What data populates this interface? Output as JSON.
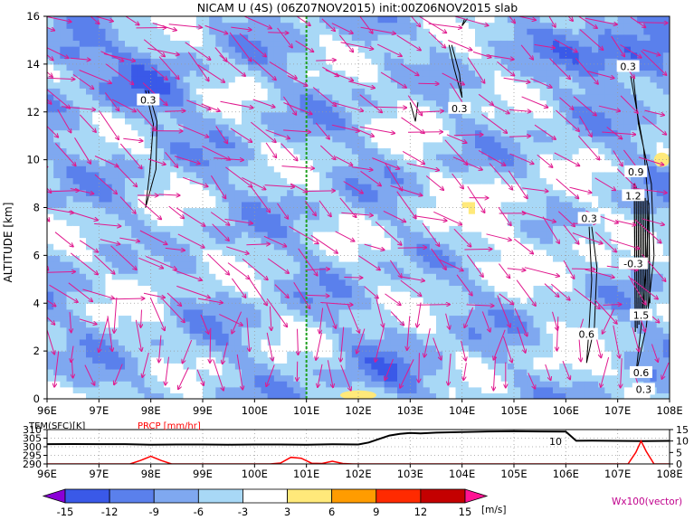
{
  "chart_data": [
    {
      "type": "heatmap",
      "title": "NICAM U (4S) (06Z07NOV2015) init:00Z06NOV2015 slab",
      "ylabel": "ALTITUDE [km]",
      "xlim": [
        96,
        108
      ],
      "ylim": [
        0,
        16
      ],
      "x_ticks": [
        "96E",
        "97E",
        "98E",
        "99E",
        "100E",
        "101E",
        "102E",
        "103E",
        "104E",
        "105E",
        "106E",
        "107E",
        "108E"
      ],
      "y_ticks": [
        "0",
        "2",
        "4",
        "6",
        "8",
        "10",
        "12",
        "14",
        "16"
      ],
      "grid": true,
      "marker_line_lon": 101.0,
      "contour_labels": [
        {
          "text": "0.3",
          "lon": 97.95,
          "alt": 12.5
        },
        {
          "text": "0.3",
          "lon": 103.95,
          "alt": 12.15
        },
        {
          "text": "0.3",
          "lon": 107.2,
          "alt": 13.9
        },
        {
          "text": "0.9",
          "lon": 107.35,
          "alt": 9.5
        },
        {
          "text": "1.2",
          "lon": 107.3,
          "alt": 8.5
        },
        {
          "text": "0.3",
          "lon": 106.45,
          "alt": 7.55
        },
        {
          "text": "-0.3",
          "lon": 107.3,
          "alt": 5.65
        },
        {
          "text": "1.5",
          "lon": 107.45,
          "alt": 3.5
        },
        {
          "text": "0.6",
          "lon": 106.4,
          "alt": 2.7
        },
        {
          "text": "0.6",
          "lon": 107.45,
          "alt": 1.1
        },
        {
          "text": "0.3",
          "lon": 107.5,
          "alt": 0.4
        }
      ],
      "vector_legend": "Wx100(vector)"
    },
    {
      "type": "line",
      "legend_left": "TEM(SFC)[K]",
      "legend_right": "PRCP [mm/hr]",
      "xlim": [
        96,
        108
      ],
      "y_left_ticks": [
        "310",
        "305",
        "300",
        "295",
        "290"
      ],
      "y_right_ticks": [
        "15",
        "10",
        "5",
        "0"
      ],
      "series": [
        {
          "name": "TEM(SFC)[K]",
          "color": "#000000",
          "x": [
            96,
            96.5,
            97,
            97.5,
            98,
            98.5,
            99,
            99.5,
            100,
            100.5,
            101,
            101.5,
            102,
            102.2,
            102.4,
            102.6,
            102.8,
            103,
            103.2,
            103.5,
            104,
            104.5,
            105,
            105.5,
            106,
            106.2,
            106.5,
            107,
            107.5,
            108
          ],
          "values": [
            301.5,
            301.6,
            301.5,
            301.5,
            301.2,
            301.3,
            301.3,
            301.2,
            301.3,
            301.3,
            301.2,
            301.4,
            301.3,
            302.5,
            304.5,
            306.5,
            307.5,
            308.0,
            307.8,
            308.2,
            308.6,
            308.9,
            309.0,
            308.9,
            308.8,
            303.5,
            303.6,
            303.4,
            303.3,
            303.4
          ]
        },
        {
          "name": "PRCP [mm/hr]",
          "color": "#ff0000",
          "x": [
            96,
            97.6,
            97.8,
            98.0,
            98.2,
            98.4,
            100.3,
            100.5,
            100.7,
            100.9,
            101.1,
            101.3,
            101.5,
            101.7,
            101.9,
            102.5,
            105.8,
            106.2,
            107.2,
            107.35,
            107.45,
            107.55,
            107.7,
            108
          ],
          "values": [
            0,
            0,
            1.5,
            3.3,
            1.5,
            0,
            0,
            0.4,
            2.9,
            2.5,
            0.3,
            0.2,
            1.2,
            0.2,
            0,
            0,
            0,
            0,
            0,
            5,
            10,
            5.5,
            0,
            0
          ]
        }
      ],
      "annotation": "10"
    }
  ],
  "colorbar": {
    "ticks": [
      "-15",
      "-12",
      "-9",
      "-6",
      "-3",
      "3",
      "6",
      "9",
      "12",
      "15"
    ],
    "unit": "[m/s]",
    "colors": [
      "#8a00d6",
      "#3a59e8",
      "#5a80ec",
      "#7fa8f0",
      "#a8d8f6",
      "#ffffff",
      "#ffe97a",
      "#ff9c00",
      "#ff2a00",
      "#c40000",
      "#ff1493"
    ]
  }
}
